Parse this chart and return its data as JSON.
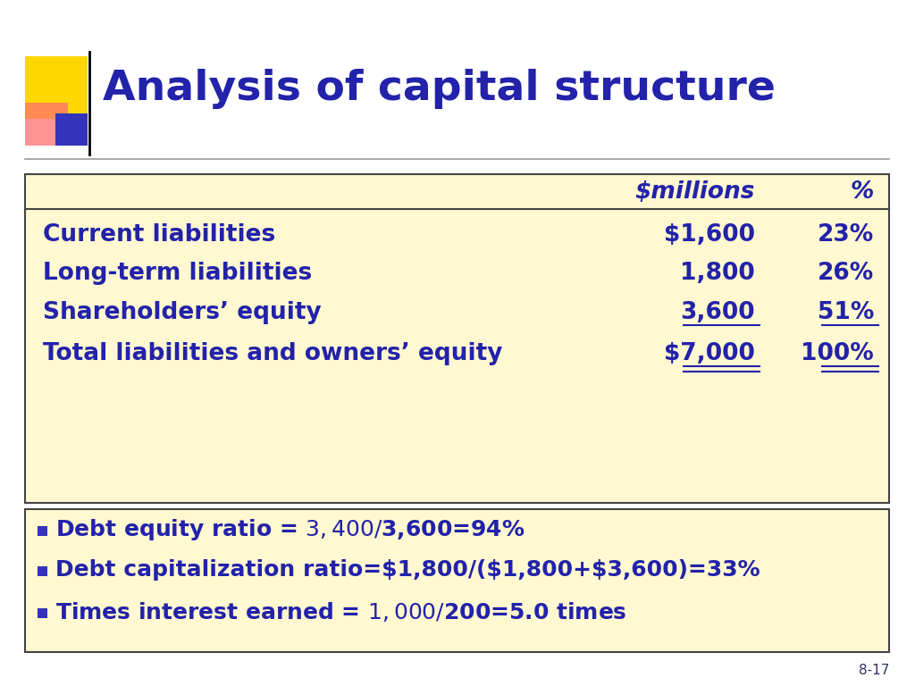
{
  "title": "Analysis of capital structure",
  "title_color": "#2222AA",
  "title_fontsize": 34,
  "bg_color": "#FFFFFF",
  "table_bg": "#FFF8D0",
  "table_border_color": "#444444",
  "text_color": "#2222AA",
  "table_header": [
    "",
    "$millions",
    "%"
  ],
  "table_rows": [
    [
      "Current liabilities",
      "$1,600",
      "23%"
    ],
    [
      "Long-term liabilities",
      "1,800",
      "26%"
    ],
    [
      "Shareholders’ equity",
      "3,600",
      "51%"
    ],
    [
      "Total liabilities and owners’ equity",
      "$7,000",
      "100%"
    ]
  ],
  "bullets": [
    "Debt equity ratio = $3,400/$3,600=94%",
    "Debt capitalization ratio=$1,800/($1,800+$3,600)=33%",
    "Times interest earned = $1,000/$200=5.0 times"
  ],
  "slide_number": "8-17",
  "logo_yellow": "#FFD700",
  "logo_red": "#FF7070",
  "logo_blue": "#3333BB",
  "logo_red_alpha": 0.75
}
